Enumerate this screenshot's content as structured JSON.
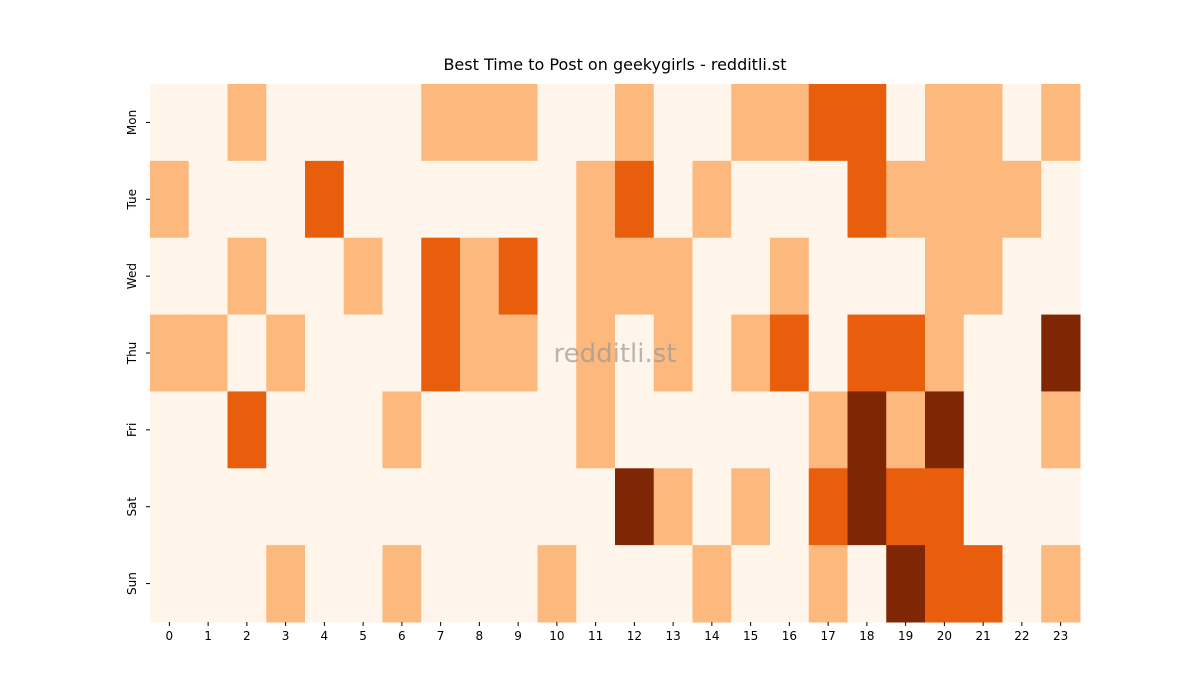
{
  "chart_data": {
    "type": "heatmap",
    "title": "Best Time to Post on geekygirls - redditli.st",
    "watermark": "redditli.st",
    "x": [
      0,
      1,
      2,
      3,
      4,
      5,
      6,
      7,
      8,
      9,
      10,
      11,
      12,
      13,
      14,
      15,
      16,
      17,
      18,
      19,
      20,
      21,
      22,
      23
    ],
    "y": [
      "Mon",
      "Tue",
      "Wed",
      "Thu",
      "Fri",
      "Sat",
      "Sun"
    ],
    "values": [
      [
        0,
        0,
        1,
        0,
        0,
        0,
        0,
        1,
        1,
        1,
        0,
        0,
        1,
        0,
        0,
        1,
        1,
        2,
        2,
        0,
        1,
        1,
        0,
        1
      ],
      [
        1,
        0,
        0,
        0,
        2,
        0,
        0,
        0,
        0,
        0,
        0,
        1,
        2,
        0,
        1,
        0,
        0,
        0,
        2,
        1,
        1,
        1,
        1,
        0
      ],
      [
        0,
        0,
        1,
        0,
        0,
        1,
        0,
        2,
        1,
        2,
        0,
        1,
        1,
        1,
        0,
        0,
        1,
        0,
        0,
        0,
        1,
        1,
        0,
        0
      ],
      [
        1,
        1,
        0,
        1,
        0,
        0,
        0,
        2,
        1,
        1,
        0,
        1,
        0,
        1,
        0,
        1,
        2,
        0,
        2,
        2,
        1,
        0,
        0,
        3
      ],
      [
        0,
        0,
        2,
        0,
        0,
        0,
        1,
        0,
        0,
        0,
        0,
        1,
        0,
        0,
        0,
        0,
        0,
        1,
        3,
        1,
        3,
        0,
        0,
        1
      ],
      [
        0,
        0,
        0,
        0,
        0,
        0,
        0,
        0,
        0,
        0,
        0,
        0,
        3,
        1,
        0,
        1,
        0,
        2,
        3,
        2,
        2,
        0,
        0,
        0
      ],
      [
        0,
        0,
        0,
        1,
        0,
        0,
        1,
        0,
        0,
        0,
        1,
        0,
        0,
        0,
        1,
        0,
        0,
        1,
        0,
        3,
        2,
        2,
        0,
        1
      ]
    ],
    "colors": [
      "#fff5eb",
      "#fdb97d",
      "#e95e0d",
      "#7f2704"
    ]
  }
}
